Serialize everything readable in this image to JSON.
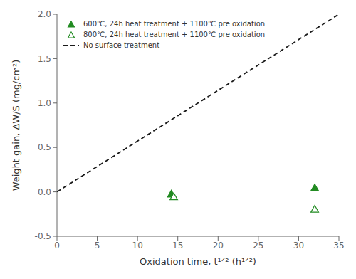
{
  "chart_data": {
    "type": "scatter",
    "xlabel": "Oxidation time, t¹ᐟ² (h¹ᐟ²)",
    "ylabel": "Weight gain, ΔW/S (mg/cm²)",
    "xlim": [
      0,
      35
    ],
    "ylim": [
      -0.5,
      2.0
    ],
    "xticks": [
      0,
      5,
      10,
      15,
      20,
      25,
      30,
      35
    ],
    "yticks": [
      -0.5,
      {
        "value": 0,
        "label": "0.0"
      },
      0.5,
      {
        "value": 1,
        "label": "1.0"
      },
      1.5,
      {
        "value": 2,
        "label": "2.0"
      }
    ],
    "grid": false,
    "legend": "upper left",
    "series": [
      {
        "name": "600℃, 24h heat treatment + 1100℃ pre oxidation",
        "type": "scatter",
        "marker": "triangle",
        "color": "#228B22",
        "x": [
          14.2,
          32.0
        ],
        "values": [
          -0.03,
          0.04
        ]
      },
      {
        "name": "800℃, 24h heat treatment + 1100℃ pre oxidation",
        "type": "scatter",
        "marker": "open_triangle",
        "color": "#228B22",
        "x": [
          14.5,
          32.0
        ],
        "values": [
          -0.06,
          -0.2
        ]
      },
      {
        "name": "No surface treatment",
        "type": "line",
        "line_style": "dashed",
        "color": "#1a1a1a",
        "x": [
          0,
          35
        ],
        "values": [
          0.0,
          2.0
        ]
      }
    ]
  }
}
